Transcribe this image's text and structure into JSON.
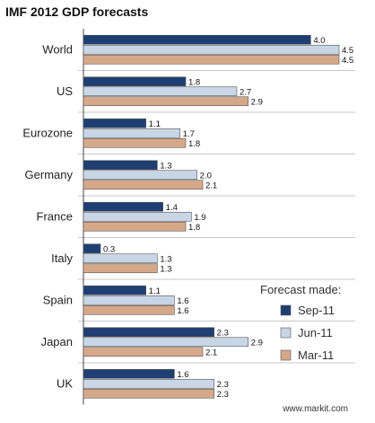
{
  "chart_data": {
    "type": "bar",
    "orientation": "horizontal",
    "title": "IMF 2012 GDP forecasts",
    "categories": [
      "World",
      "US",
      "Eurozone",
      "Germany",
      "France",
      "Italy",
      "Spain",
      "Japan",
      "UK"
    ],
    "series": [
      {
        "name": "Sep-11",
        "color": "#1f3f73",
        "values": [
          4.0,
          1.8,
          1.1,
          1.3,
          1.4,
          0.3,
          1.1,
          2.3,
          1.6
        ],
        "labels": [
          "4.0",
          "1.8",
          "1.1",
          "1.3",
          "1.4",
          "0.3",
          "1.1",
          "2.3",
          "1.6"
        ]
      },
      {
        "name": "Jun-11",
        "color": "#c8d6e6",
        "values": [
          4.5,
          2.7,
          1.7,
          2.0,
          1.9,
          1.3,
          1.6,
          2.9,
          2.3
        ],
        "labels": [
          "4.5",
          "2.7",
          "1.7",
          "2.0",
          "1.9",
          "1.3",
          "1.6",
          "2.9",
          "2.3"
        ]
      },
      {
        "name": "Mar-11",
        "color": "#d6a88a",
        "values": [
          4.5,
          2.9,
          1.8,
          2.1,
          1.8,
          1.3,
          1.6,
          2.1,
          2.3
        ],
        "labels": [
          "4.5",
          "2.9",
          "1.8",
          "2.1",
          "1.8",
          "1.3",
          "1.6",
          "2.1",
          "2.3"
        ]
      }
    ],
    "xlim": [
      0,
      4.8
    ],
    "grid": false,
    "legend_title": "Forecast made:",
    "legend_position": "bottom-right",
    "source": "www.markit.com"
  }
}
